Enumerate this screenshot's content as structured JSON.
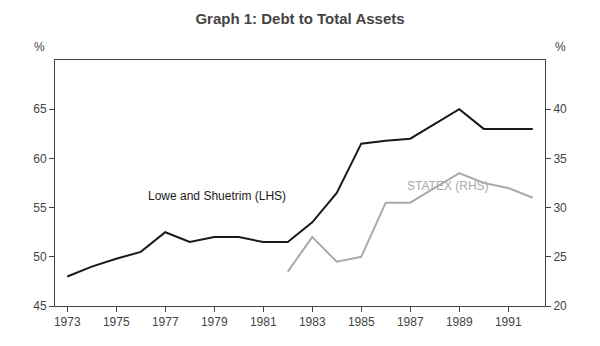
{
  "chart_data": {
    "type": "line",
    "title": "Graph 1: Debt to Total Assets",
    "x": [
      1973,
      1974,
      1975,
      1976,
      1977,
      1978,
      1979,
      1980,
      1981,
      1982,
      1983,
      1984,
      1985,
      1986,
      1987,
      1988,
      1989,
      1990,
      1991,
      1992
    ],
    "series": [
      {
        "name": "Lowe and Shuetrim (LHS)",
        "color": "#1a1a1a",
        "values": [
          48.0,
          49.0,
          49.8,
          50.5,
          52.5,
          51.5,
          52.0,
          52.0,
          51.5,
          51.5,
          53.5,
          56.5,
          61.5,
          61.8,
          62.0,
          63.5,
          65.0,
          63.0,
          63.0,
          63.0
        ]
      },
      {
        "name": "STATEX (RHS)",
        "color": "#aaaaaa",
        "axis": "y2",
        "values": [
          null,
          null,
          null,
          null,
          null,
          null,
          null,
          null,
          null,
          23.5,
          27.0,
          24.5,
          25.0,
          30.5,
          30.5,
          32.0,
          33.5,
          32.5,
          32.0,
          31.0
        ]
      }
    ],
    "xlim": [
      1972.5,
      1992.5
    ],
    "xticks": [
      1973,
      1975,
      1977,
      1979,
      1981,
      1983,
      1985,
      1987,
      1989,
      1991
    ],
    "ylim": [
      45,
      70
    ],
    "yticks": [
      45,
      50,
      55,
      60,
      65
    ],
    "y2lim": [
      20,
      45
    ],
    "y2ticks": [
      20,
      25,
      30,
      35,
      40
    ],
    "ylabel": "%",
    "y2label": "%",
    "grid": false
  }
}
